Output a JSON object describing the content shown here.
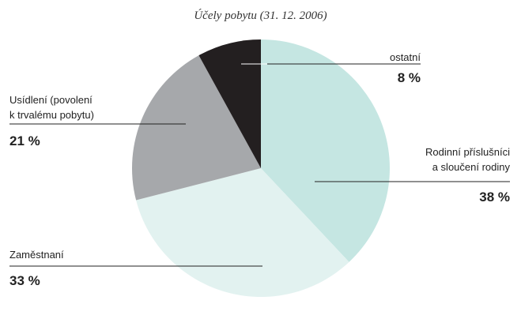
{
  "chart_data": {
    "type": "pie",
    "title": "Účely pobytu (31. 12. 2006)",
    "categories": [
      "Rodinní příslušníci\na sloučení rodiny",
      "Zaměstnaní",
      "Usídlení (povolení\nk trvalému pobytu)",
      "ostatní"
    ],
    "values": [
      38,
      33,
      21,
      8
    ],
    "value_labels": [
      "38 %",
      "33 %",
      "21 %",
      "8 %"
    ],
    "colors": [
      "#c5e6e2",
      "#e2f2f0",
      "#a6a8ab",
      "#231f20"
    ]
  }
}
